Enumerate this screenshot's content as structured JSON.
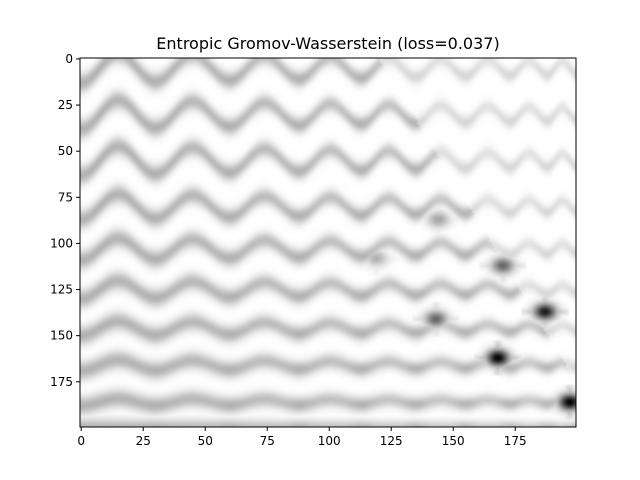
{
  "chart_data": {
    "type": "heatmap",
    "title": "Entropic Gromov-Wasserstein (loss=0.037)",
    "xlabel": "",
    "ylabel": "",
    "colormap": "gray_r",
    "xlim": [
      -0.5,
      199.5
    ],
    "ylim": [
      199.5,
      -0.5
    ],
    "x_ticks": [
      0,
      25,
      50,
      75,
      100,
      125,
      150,
      175
    ],
    "y_ticks": [
      0,
      25,
      50,
      75,
      100,
      125,
      150,
      175
    ],
    "x_tick_labels": [
      "0",
      "25",
      "50",
      "75",
      "100",
      "125",
      "150",
      "175"
    ],
    "y_tick_labels": [
      "0",
      "25",
      "50",
      "75",
      "100",
      "125",
      "150",
      "175"
    ],
    "grid": false,
    "column_boundaries": [
      0,
      30,
      60,
      88,
      113,
      135,
      155,
      173,
      188,
      200
    ],
    "row_curves": [
      5,
      30,
      55,
      80,
      103,
      125,
      146,
      166,
      186,
      200
    ],
    "curve_amplitude": [
      8,
      8,
      8,
      7,
      6,
      5,
      4,
      3,
      2,
      0
    ],
    "dark_spots": [
      {
        "x": 168,
        "y": 162,
        "value": 1.0
      },
      {
        "x": 187,
        "y": 137,
        "value": 0.9
      },
      {
        "x": 197,
        "y": 186,
        "value": 1.0
      },
      {
        "x": 143,
        "y": 141,
        "value": 0.6
      },
      {
        "x": 144,
        "y": 87,
        "value": 0.35
      },
      {
        "x": 170,
        "y": 112,
        "value": 0.6
      },
      {
        "x": 119,
        "y": 108,
        "value": 0.3
      }
    ]
  }
}
